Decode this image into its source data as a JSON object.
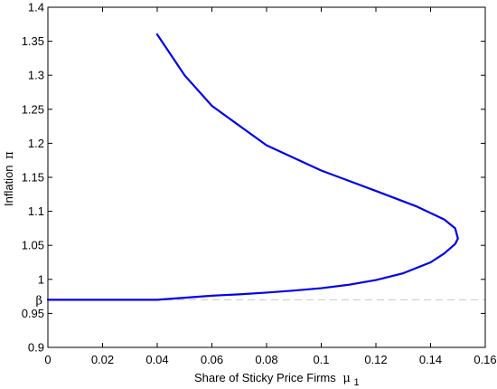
{
  "chart_data": {
    "type": "line",
    "xlabel": "Share of Sticky Price Firms",
    "xlabel_symbol": "μ",
    "xlabel_subscript": "1",
    "ylabel": "Inflation",
    "ylabel_symbol": "π",
    "xlim": [
      0,
      0.16
    ],
    "ylim": [
      0.9,
      1.4
    ],
    "x_ticks": [
      "0",
      "0.02",
      "0.04",
      "0.06",
      "0.08",
      "0.1",
      "0.12",
      "0.14",
      "0.16"
    ],
    "y_ticks": [
      "0.9",
      "0.95",
      "1",
      "1.05",
      "1.1",
      "1.15",
      "1.2",
      "1.25",
      "1.3",
      "1.35",
      "1.4"
    ],
    "grid": false,
    "series": [
      {
        "color": "#0000ee",
        "points": [
          [
            0,
            0.97
          ],
          [
            0.02,
            0.97
          ],
          [
            0.04,
            0.97
          ],
          [
            0.045,
            0.9715
          ],
          [
            0.05,
            0.973
          ],
          [
            0.06,
            0.976
          ],
          [
            0.07,
            0.978
          ],
          [
            0.08,
            0.9805
          ],
          [
            0.09,
            0.9835
          ],
          [
            0.1,
            0.987
          ],
          [
            0.11,
            0.992
          ],
          [
            0.12,
            0.999
          ],
          [
            0.13,
            1.009
          ],
          [
            0.14,
            1.025
          ],
          [
            0.145,
            1.038
          ],
          [
            0.149,
            1.052
          ],
          [
            0.15,
            1.06
          ],
          [
            0.149,
            1.075
          ],
          [
            0.145,
            1.088
          ],
          [
            0.135,
            1.107
          ],
          [
            0.12,
            1.13
          ],
          [
            0.1,
            1.16
          ],
          [
            0.08,
            1.197
          ],
          [
            0.06,
            1.255
          ],
          [
            0.05,
            1.3
          ],
          [
            0.045,
            1.33
          ],
          [
            0.04,
            1.36
          ]
        ]
      }
    ],
    "reference_line": {
      "y": 0.97,
      "label": "β",
      "color": "#c8c8c8"
    }
  }
}
